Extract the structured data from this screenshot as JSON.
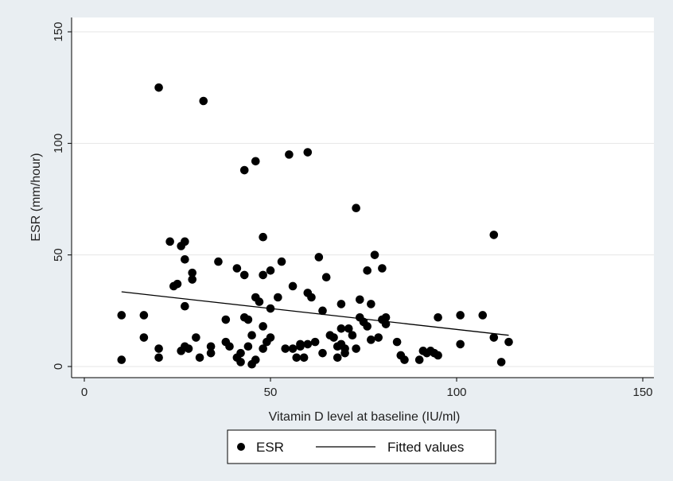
{
  "chart_data": {
    "type": "scatter",
    "xlabel": "Vitamin D level at baseline (IU/ml)",
    "ylabel": "ESR (mm/hour)",
    "xlim": [
      0,
      150
    ],
    "ylim": [
      0,
      150
    ],
    "x_ticks": [
      0,
      50,
      100,
      150
    ],
    "y_ticks": [
      0,
      50,
      100,
      150
    ],
    "grid": "horizontal",
    "legend_position": "bottom",
    "colors": {
      "background": "#e9eef2",
      "plot_area": "#ffffff",
      "points": "#000000",
      "line": "#000000"
    },
    "series": [
      {
        "name": "ESR",
        "type": "scatter",
        "points": [
          [
            10,
            23
          ],
          [
            10,
            3
          ],
          [
            16,
            23
          ],
          [
            16,
            13
          ],
          [
            20,
            125
          ],
          [
            20,
            8
          ],
          [
            20,
            4
          ],
          [
            23,
            56
          ],
          [
            24,
            36
          ],
          [
            25,
            37
          ],
          [
            26,
            54
          ],
          [
            26,
            7
          ],
          [
            27,
            56
          ],
          [
            27,
            48
          ],
          [
            27,
            27
          ],
          [
            27,
            9
          ],
          [
            28,
            8
          ],
          [
            29,
            39
          ],
          [
            29,
            42
          ],
          [
            30,
            13
          ],
          [
            31,
            4
          ],
          [
            32,
            119
          ],
          [
            34,
            9
          ],
          [
            34,
            6
          ],
          [
            36,
            47
          ],
          [
            38,
            21
          ],
          [
            38,
            11
          ],
          [
            39,
            9
          ],
          [
            41,
            44
          ],
          [
            41,
            4
          ],
          [
            42,
            2
          ],
          [
            42,
            6
          ],
          [
            43,
            88
          ],
          [
            43,
            41
          ],
          [
            43,
            22
          ],
          [
            44,
            21
          ],
          [
            44,
            9
          ],
          [
            45,
            14
          ],
          [
            45,
            1
          ],
          [
            46,
            92
          ],
          [
            46,
            3
          ],
          [
            46,
            31
          ],
          [
            47,
            29
          ],
          [
            48,
            58
          ],
          [
            48,
            41
          ],
          [
            48,
            18
          ],
          [
            48,
            8
          ],
          [
            49,
            11
          ],
          [
            50,
            43
          ],
          [
            50,
            26
          ],
          [
            50,
            13
          ],
          [
            52,
            31
          ],
          [
            53,
            47
          ],
          [
            54,
            8
          ],
          [
            55,
            95
          ],
          [
            56,
            36
          ],
          [
            56,
            8
          ],
          [
            57,
            4
          ],
          [
            58,
            10
          ],
          [
            58,
            9
          ],
          [
            59,
            4
          ],
          [
            60,
            96
          ],
          [
            60,
            33
          ],
          [
            60,
            10
          ],
          [
            61,
            31
          ],
          [
            62,
            11
          ],
          [
            63,
            49
          ],
          [
            64,
            25
          ],
          [
            64,
            6
          ],
          [
            65,
            40
          ],
          [
            66,
            14
          ],
          [
            67,
            13
          ],
          [
            68,
            9
          ],
          [
            68,
            4
          ],
          [
            69,
            28
          ],
          [
            69,
            17
          ],
          [
            69,
            10
          ],
          [
            70,
            8
          ],
          [
            70,
            6
          ],
          [
            71,
            17
          ],
          [
            72,
            14
          ],
          [
            73,
            71
          ],
          [
            73,
            8
          ],
          [
            74,
            30
          ],
          [
            74,
            22
          ],
          [
            75,
            20
          ],
          [
            76,
            18
          ],
          [
            76,
            43
          ],
          [
            77,
            28
          ],
          [
            77,
            12
          ],
          [
            78,
            50
          ],
          [
            79,
            13
          ],
          [
            80,
            44
          ],
          [
            80,
            21
          ],
          [
            81,
            22
          ],
          [
            81,
            19
          ],
          [
            84,
            11
          ],
          [
            85,
            5
          ],
          [
            86,
            3
          ],
          [
            90,
            3
          ],
          [
            91,
            7
          ],
          [
            92,
            6
          ],
          [
            93,
            7
          ],
          [
            94,
            6
          ],
          [
            95,
            5
          ],
          [
            95,
            22
          ],
          [
            101,
            23
          ],
          [
            101,
            10
          ],
          [
            107,
            23
          ],
          [
            110,
            59
          ],
          [
            110,
            13
          ],
          [
            112,
            2
          ],
          [
            114,
            11
          ]
        ]
      },
      {
        "name": "Fitted values",
        "type": "line",
        "points": [
          [
            10,
            33.5
          ],
          [
            114,
            14
          ]
        ]
      }
    ]
  }
}
